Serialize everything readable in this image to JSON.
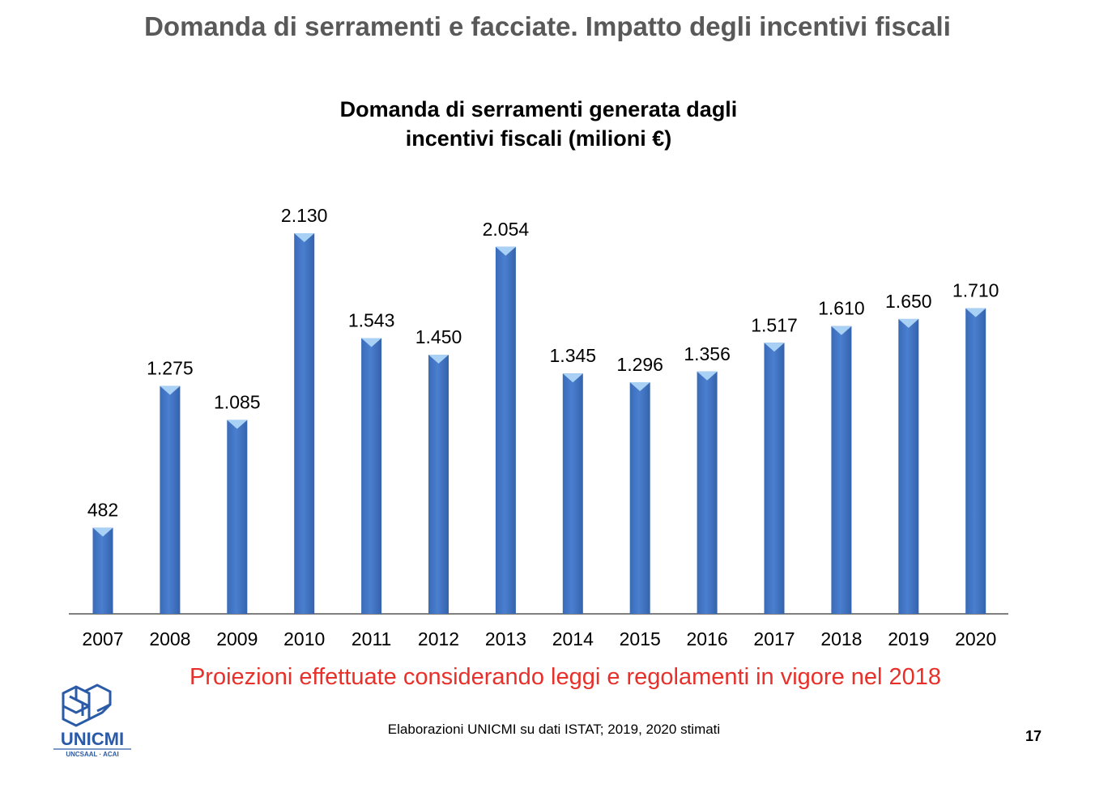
{
  "slide": {
    "title": "Domanda di serramenti e facciate. Impatto degli incentivi fiscali",
    "note": "Proiezioni effettuate considerando leggi e regolamenti in vigore nel 2018",
    "source": "Elaborazioni UNICMI su dati ISTAT; 2019, 2020 stimati",
    "page_number": "17"
  },
  "logo": {
    "name": "UNICMI",
    "subtitle": "UNCSAAL · ACAI"
  },
  "chart_data": {
    "type": "bar",
    "title_lines": [
      "Domanda di serramenti generata dagli",
      "incentivi fiscali (milioni €)"
    ],
    "categories": [
      "2007",
      "2008",
      "2009",
      "2010",
      "2011",
      "2012",
      "2013",
      "2014",
      "2015",
      "2016",
      "2017",
      "2018",
      "2019",
      "2020"
    ],
    "values": [
      482,
      1275,
      1085,
      2130,
      1543,
      1450,
      2054,
      1345,
      1296,
      1356,
      1517,
      1610,
      1650,
      1710
    ],
    "value_labels": [
      "482",
      "1.275",
      "1.085",
      "2.130",
      "1.543",
      "1.450",
      "2.054",
      "1.345",
      "1.296",
      "1.356",
      "1.517",
      "1.610",
      "1.650",
      "1.710"
    ],
    "ylim": [
      0,
      2130
    ],
    "grid": false,
    "legend": "none",
    "bar_color": "#4a7fcf",
    "bar_top_color": "#a9d0f5"
  }
}
